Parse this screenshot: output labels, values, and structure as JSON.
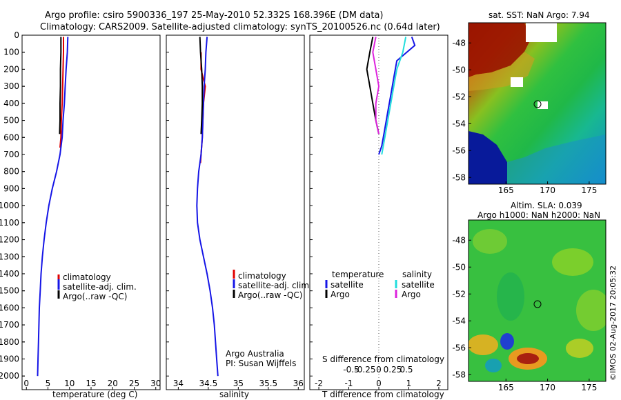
{
  "header": {
    "title_line1": "Argo profile: csiro 5900336_197 25-May-2010 52.332S 168.396E (DM data)",
    "title_line2": "Climatology: CARS2009. Satellite-adjusted climatology: synTS_20100526.nc (0.64d later)"
  },
  "watermark": "©IMOS 02-Aug-2017 20:05:32",
  "colors": {
    "climatology": "#e00000",
    "satellite": "#1515e6",
    "argo": "#000000",
    "sal_satellite": "#22dddd",
    "sal_argo": "#dd22dd"
  },
  "chart_data": [
    {
      "type": "line",
      "name": "temperature-profile",
      "xlabel": "temperature (deg C)",
      "ylabel": "",
      "xlim": [
        -1,
        31
      ],
      "ylim": [
        2080,
        0
      ],
      "xticks": [
        0,
        5,
        10,
        15,
        20,
        25,
        30
      ],
      "yticks": [
        0,
        100,
        200,
        300,
        400,
        500,
        600,
        700,
        800,
        900,
        1000,
        1100,
        1200,
        1300,
        1400,
        1500,
        1600,
        1700,
        1800,
        1900,
        2000
      ],
      "legend": [
        "climatology",
        "satellite-adj. clim.",
        "Argo(..raw -QC)"
      ],
      "series": [
        {
          "name": "climatology",
          "color": "#e00000",
          "x": [
            8.6,
            8.6,
            8.5,
            8.4,
            8.3,
            8.1,
            8.0,
            7.8
          ],
          "y": [
            10,
            100,
            200,
            300,
            400,
            500,
            600,
            660
          ]
        },
        {
          "name": "satellite",
          "color": "#1515e6",
          "x": [
            9.6,
            9.5,
            9.2,
            9.0,
            8.8,
            8.5,
            8.3,
            7.8,
            7.0,
            6.0,
            5.2,
            4.6,
            4.1,
            3.7,
            3.4,
            3.2,
            3.0,
            2.9,
            2.8,
            2.7,
            2.6
          ],
          "y": [
            10,
            100,
            200,
            300,
            400,
            500,
            600,
            700,
            800,
            900,
            1000,
            1100,
            1200,
            1300,
            1400,
            1500,
            1600,
            1700,
            1800,
            1900,
            2000
          ]
        },
        {
          "name": "argo",
          "color": "#000000",
          "x": [
            8.0,
            8.0,
            7.9,
            7.9,
            7.8,
            7.8,
            7.7
          ],
          "y": [
            10,
            100,
            200,
            300,
            400,
            500,
            580
          ]
        }
      ]
    },
    {
      "type": "line",
      "name": "salinity-profile",
      "xlabel": "salinity",
      "xlim": [
        33.8,
        36.1
      ],
      "ylim": [
        2080,
        0
      ],
      "xticks": [
        34,
        34.5,
        35,
        35.5,
        36
      ],
      "xtick_labels": [
        "34",
        "34.5",
        "35",
        "35.5",
        "36"
      ],
      "legend": [
        "climatology",
        "satellite-adj. clim.",
        "Argo(..raw -QC)"
      ],
      "annotation": [
        "Argo Australia",
        "PI: Susan Wijffels"
      ],
      "series": [
        {
          "name": "climatology",
          "color": "#e00000",
          "x": [
            34.38,
            34.38,
            34.42,
            34.45,
            34.42,
            34.41,
            34.4,
            34.38,
            34.37
          ],
          "y": [
            100,
            200,
            260,
            300,
            400,
            500,
            600,
            700,
            750
          ]
        },
        {
          "name": "satellite",
          "color": "#1515e6",
          "x": [
            34.48,
            34.46,
            34.45,
            34.43,
            34.42,
            34.41,
            34.4,
            34.38,
            34.34,
            34.32,
            34.31,
            34.32,
            34.36,
            34.42,
            34.48,
            34.53,
            34.57,
            34.6,
            34.62,
            34.64,
            34.66
          ],
          "y": [
            10,
            100,
            200,
            300,
            400,
            500,
            600,
            700,
            800,
            900,
            1000,
            1100,
            1200,
            1300,
            1400,
            1500,
            1600,
            1700,
            1800,
            1900,
            2000
          ]
        },
        {
          "name": "argo",
          "color": "#000000",
          "x": [
            34.36,
            34.37,
            34.39,
            34.4,
            34.4,
            34.39,
            34.38
          ],
          "y": [
            10,
            100,
            200,
            300,
            400,
            500,
            580
          ]
        }
      ]
    },
    {
      "type": "line",
      "name": "difference-profile",
      "xlabel": "T difference from climatology",
      "xlabel_top": "S difference from climatology",
      "xlim": [
        -2.3,
        2.3
      ],
      "ylim": [
        2080,
        0
      ],
      "xticks": [
        -2,
        -1,
        0,
        1,
        2
      ],
      "xtick_labels": [
        "-2",
        "-1",
        "0",
        "1",
        "2"
      ],
      "xticks_s": [
        -0.5,
        -0.25,
        0,
        0.25,
        0.5
      ],
      "xtick_labels_s": [
        "-0.5",
        "-0.25",
        "0",
        "0.25",
        "0.5"
      ],
      "legend_temp_title": "temperature",
      "legend_sal_title": "salinity",
      "legend_temp": [
        "satellite",
        "Argo"
      ],
      "legend_sal": [
        "satellite",
        "Argo"
      ],
      "series": [
        {
          "name": "temperature satellite",
          "color": "#1515e6",
          "x": [
            1.1,
            1.2,
            0.6,
            0.5,
            0.4,
            0.3,
            0.2,
            0.1,
            0.0
          ],
          "y": [
            10,
            60,
            150,
            250,
            350,
            450,
            550,
            650,
            700
          ]
        },
        {
          "name": "temperature Argo",
          "color": "#000000",
          "x": [
            -0.2,
            -0.3,
            -0.4,
            -0.3,
            -0.2,
            -0.1,
            0.0
          ],
          "y": [
            10,
            100,
            200,
            300,
            400,
            500,
            580
          ]
        },
        {
          "name": "salinity satellite",
          "color": "#22dddd",
          "x": [
            0.9,
            0.8,
            0.6,
            0.5,
            0.4,
            0.3,
            0.2,
            0.1
          ],
          "y": [
            10,
            100,
            200,
            300,
            400,
            500,
            600,
            700
          ]
        },
        {
          "name": "salinity Argo",
          "color": "#dd22dd",
          "x": [
            -0.1,
            -0.2,
            -0.1,
            0.0,
            -0.1,
            -0.1,
            0.0
          ],
          "y": [
            10,
            100,
            200,
            300,
            400,
            500,
            580
          ]
        }
      ]
    },
    {
      "type": "heatmap",
      "name": "sst-map",
      "title": "sat. SST: NaN Argo: 7.94",
      "xlim": [
        160.5,
        177
      ],
      "ylim": [
        -58.5,
        -46.5
      ],
      "xticks": [
        165,
        170,
        175
      ],
      "yticks": [
        -48,
        -50,
        -52,
        -54,
        -56,
        -58
      ],
      "argo_position": [
        168.4,
        -52.3
      ]
    },
    {
      "type": "heatmap",
      "name": "sla-map",
      "title_line1": "Altim. SLA: 0.039",
      "title_line2": "Argo h1000: NaN h2000: NaN",
      "xlim": [
        160.5,
        177
      ],
      "ylim": [
        -58.5,
        -46.5
      ],
      "xticks": [
        165,
        170,
        175
      ],
      "yticks": [
        -48,
        -50,
        -52,
        -54,
        -56,
        -58
      ],
      "argo_position": [
        168.4,
        -52.3
      ]
    }
  ]
}
